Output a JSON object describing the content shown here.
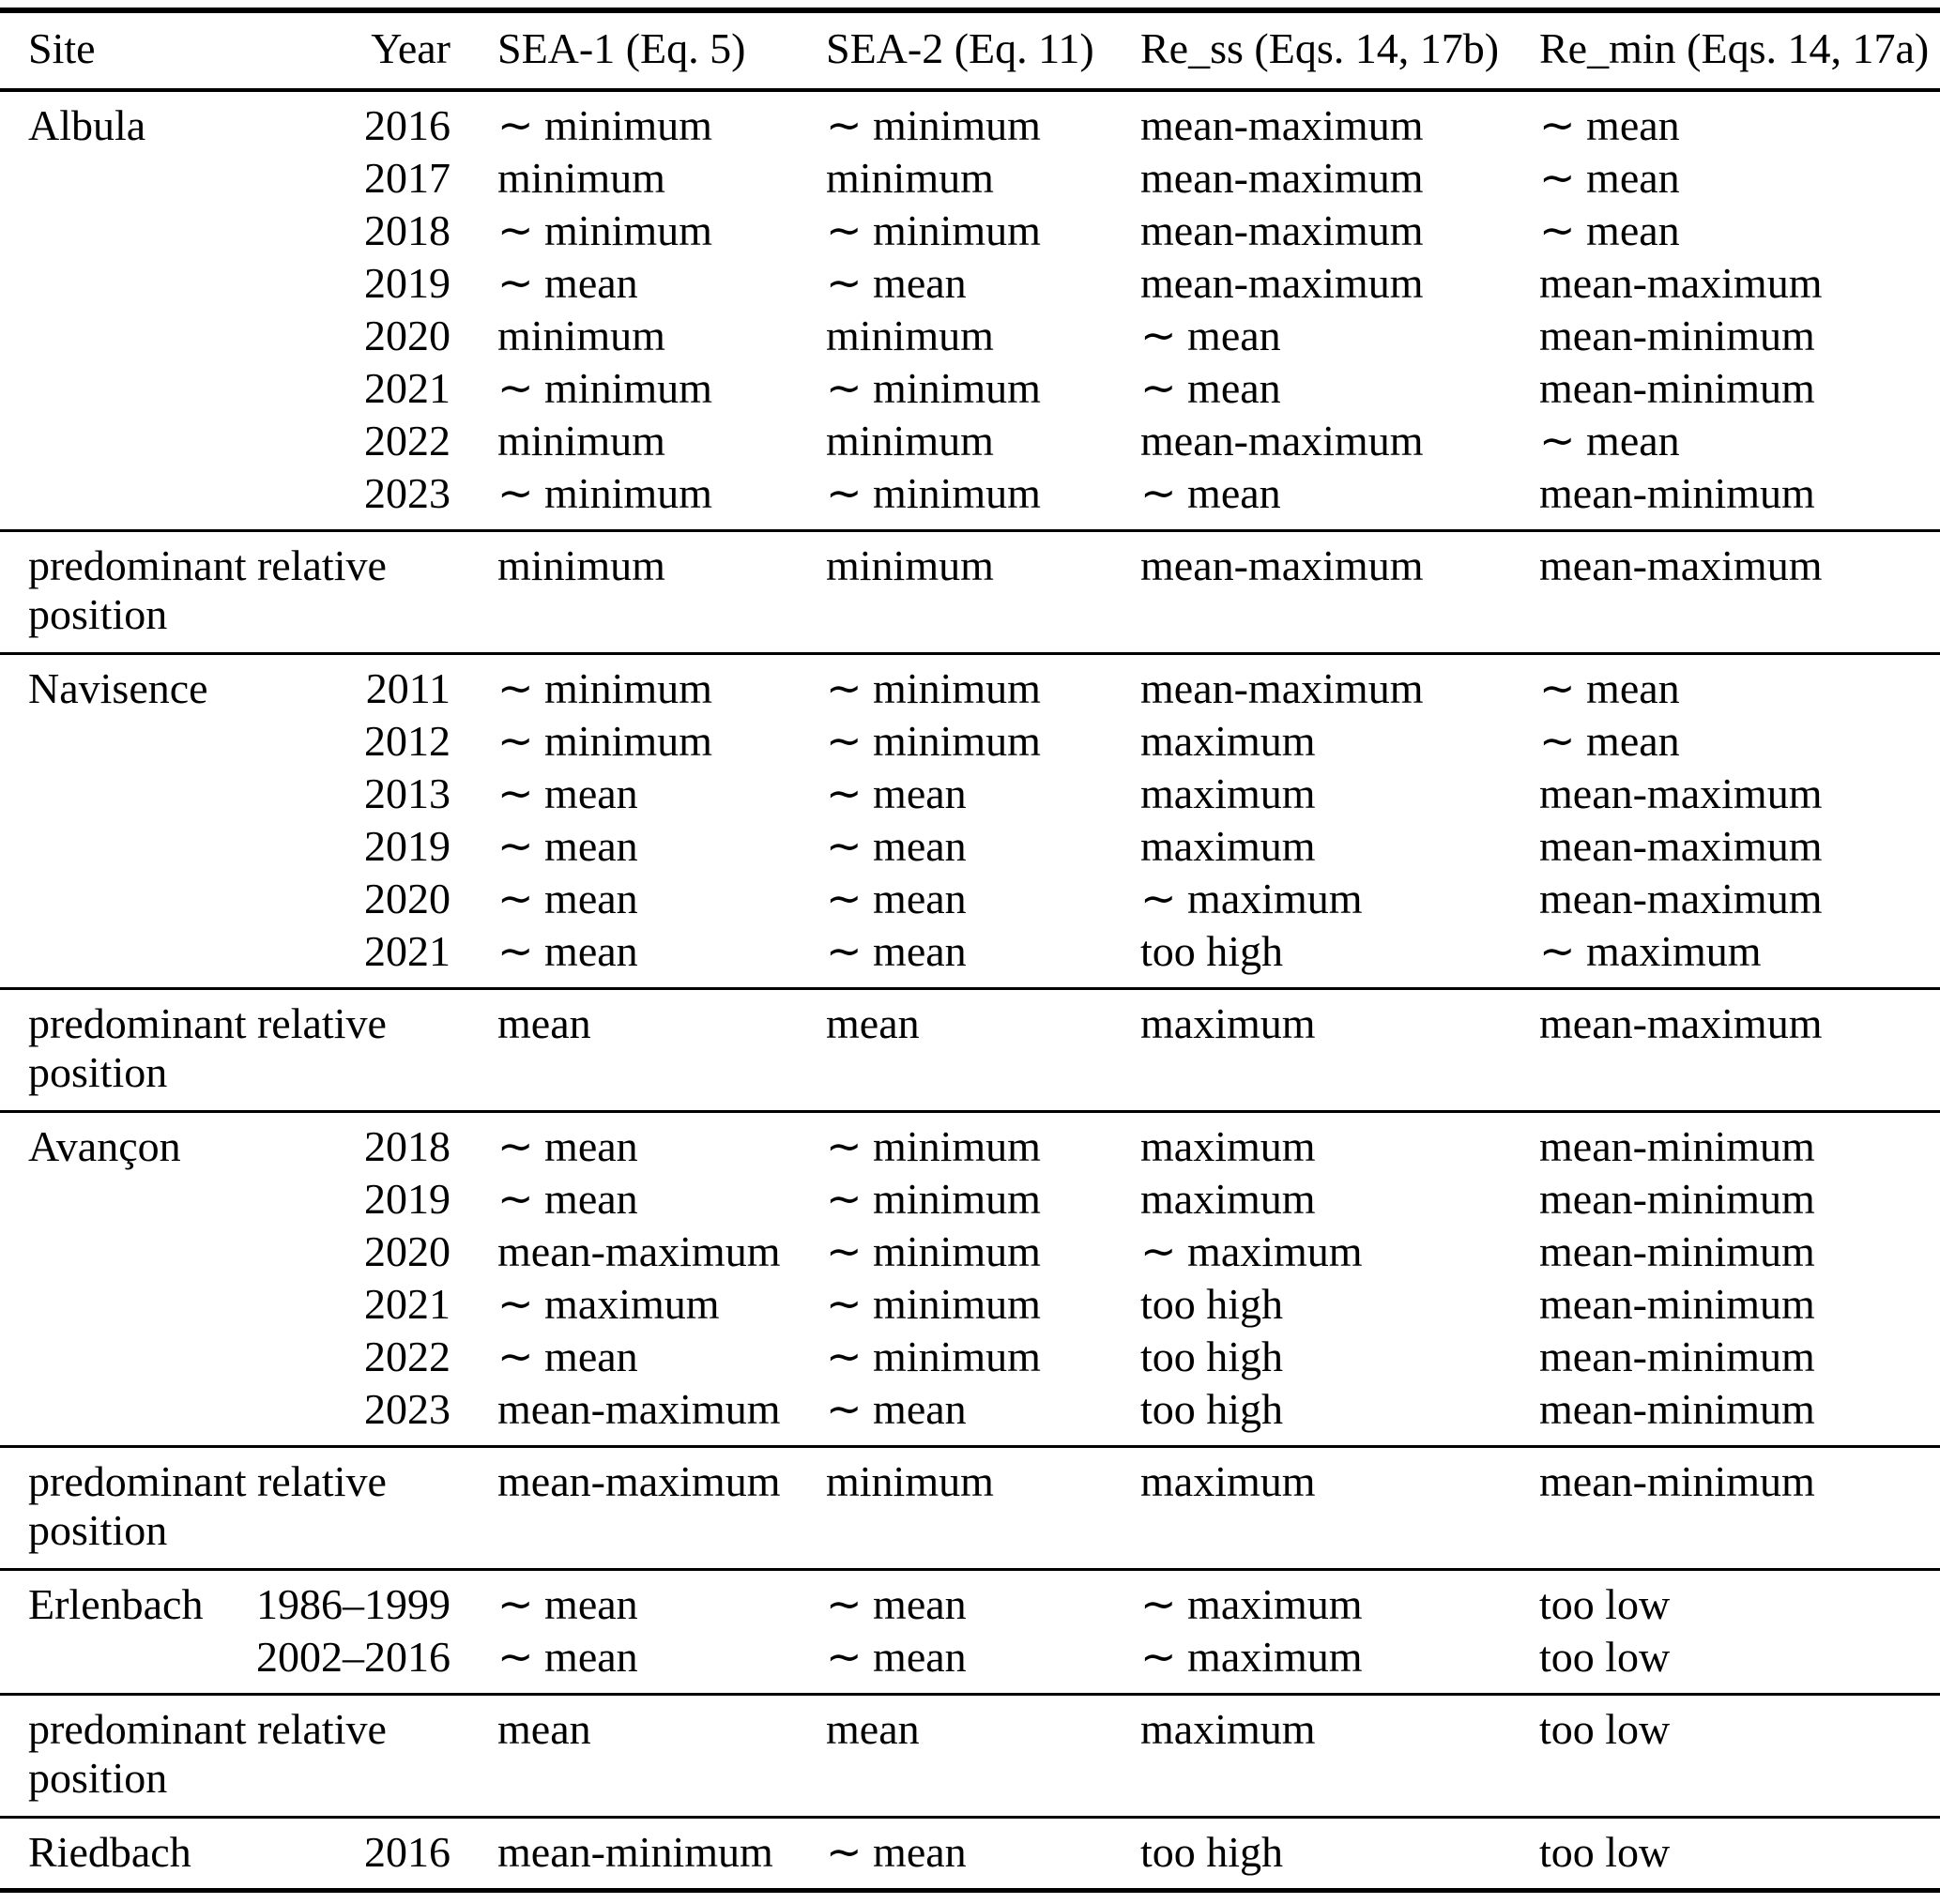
{
  "table": {
    "columns": [
      {
        "key": "site",
        "label": "Site"
      },
      {
        "key": "year",
        "label": "Year"
      },
      {
        "key": "sea1",
        "label": "SEA-1 (Eq. 5)"
      },
      {
        "key": "sea2",
        "label": "SEA-2 (Eq. 11)"
      },
      {
        "key": "re_ss",
        "label": "Re_ss (Eqs. 14, 17b)"
      },
      {
        "key": "re_min",
        "label": "Re_min (Eqs. 14, 17a)"
      }
    ],
    "predominant_label": "predominant relative position",
    "sections": [
      {
        "site": "Albula",
        "rows": [
          {
            "year": "2016",
            "sea1": "∼ minimum",
            "sea2": "∼ minimum",
            "re_ss": "mean-maximum",
            "re_min": "∼ mean"
          },
          {
            "year": "2017",
            "sea1": "minimum",
            "sea2": "minimum",
            "re_ss": "mean-maximum",
            "re_min": "∼ mean"
          },
          {
            "year": "2018",
            "sea1": "∼ minimum",
            "sea2": "∼ minimum",
            "re_ss": "mean-maximum",
            "re_min": "∼ mean"
          },
          {
            "year": "2019",
            "sea1": "∼ mean",
            "sea2": "∼ mean",
            "re_ss": "mean-maximum",
            "re_min": "mean-maximum"
          },
          {
            "year": "2020",
            "sea1": "minimum",
            "sea2": "minimum",
            "re_ss": "∼ mean",
            "re_min": "mean-minimum"
          },
          {
            "year": "2021",
            "sea1": "∼ minimum",
            "sea2": "∼ minimum",
            "re_ss": "∼ mean",
            "re_min": "mean-minimum"
          },
          {
            "year": "2022",
            "sea1": "minimum",
            "sea2": "minimum",
            "re_ss": "mean-maximum",
            "re_min": "∼ mean"
          },
          {
            "year": "2023",
            "sea1": "∼ minimum",
            "sea2": "∼ minimum",
            "re_ss": "∼ mean",
            "re_min": "mean-minimum"
          }
        ],
        "predominant": {
          "sea1": "minimum",
          "sea2": "minimum",
          "re_ss": "mean-maximum",
          "re_min": "mean-maximum"
        }
      },
      {
        "site": "Navisence",
        "rows": [
          {
            "year": "2011",
            "sea1": "∼ minimum",
            "sea2": "∼ minimum",
            "re_ss": "mean-maximum",
            "re_min": "∼ mean"
          },
          {
            "year": "2012",
            "sea1": "∼ minimum",
            "sea2": "∼ minimum",
            "re_ss": "maximum",
            "re_min": "∼ mean"
          },
          {
            "year": "2013",
            "sea1": "∼ mean",
            "sea2": "∼ mean",
            "re_ss": "maximum",
            "re_min": "mean-maximum"
          },
          {
            "year": "2019",
            "sea1": "∼ mean",
            "sea2": "∼ mean",
            "re_ss": "maximum",
            "re_min": "mean-maximum"
          },
          {
            "year": "2020",
            "sea1": "∼ mean",
            "sea2": "∼ mean",
            "re_ss": "∼ maximum",
            "re_min": "mean-maximum"
          },
          {
            "year": "2021",
            "sea1": "∼ mean",
            "sea2": "∼ mean",
            "re_ss": "too high",
            "re_min": "∼ maximum"
          }
        ],
        "predominant": {
          "sea1": "mean",
          "sea2": "mean",
          "re_ss": "maximum",
          "re_min": "mean-maximum"
        }
      },
      {
        "site": "Avançon",
        "rows": [
          {
            "year": "2018",
            "sea1": "∼ mean",
            "sea2": "∼ minimum",
            "re_ss": "maximum",
            "re_min": "mean-minimum"
          },
          {
            "year": "2019",
            "sea1": "∼ mean",
            "sea2": "∼ minimum",
            "re_ss": "maximum",
            "re_min": "mean-minimum"
          },
          {
            "year": "2020",
            "sea1": "mean-maximum",
            "sea2": "∼ minimum",
            "re_ss": "∼ maximum",
            "re_min": "mean-minimum"
          },
          {
            "year": "2021",
            "sea1": "∼ maximum",
            "sea2": "∼ minimum",
            "re_ss": "too high",
            "re_min": "mean-minimum"
          },
          {
            "year": "2022",
            "sea1": "∼ mean",
            "sea2": "∼ minimum",
            "re_ss": "too high",
            "re_min": "mean-minimum"
          },
          {
            "year": "2023",
            "sea1": "mean-maximum",
            "sea2": "∼ mean",
            "re_ss": "too high",
            "re_min": "mean-minimum"
          }
        ],
        "predominant": {
          "sea1": "mean-maximum",
          "sea2": "minimum",
          "re_ss": "maximum",
          "re_min": "mean-minimum"
        }
      },
      {
        "site": "Erlenbach",
        "rows": [
          {
            "year": "1986–1999",
            "sea1": "∼ mean",
            "sea2": "∼ mean",
            "re_ss": "∼ maximum",
            "re_min": "too low"
          },
          {
            "year": "2002–2016",
            "sea1": "∼ mean",
            "sea2": "∼ mean",
            "re_ss": "∼ maximum",
            "re_min": "too low"
          }
        ],
        "predominant": {
          "sea1": "mean",
          "sea2": "mean",
          "re_ss": "maximum",
          "re_min": "too low"
        }
      },
      {
        "site": "Riedbach",
        "rows": [
          {
            "year": "2016",
            "sea1": "mean-minimum",
            "sea2": "∼ mean",
            "re_ss": "too high",
            "re_min": "too low"
          }
        ],
        "predominant": null
      }
    ]
  }
}
